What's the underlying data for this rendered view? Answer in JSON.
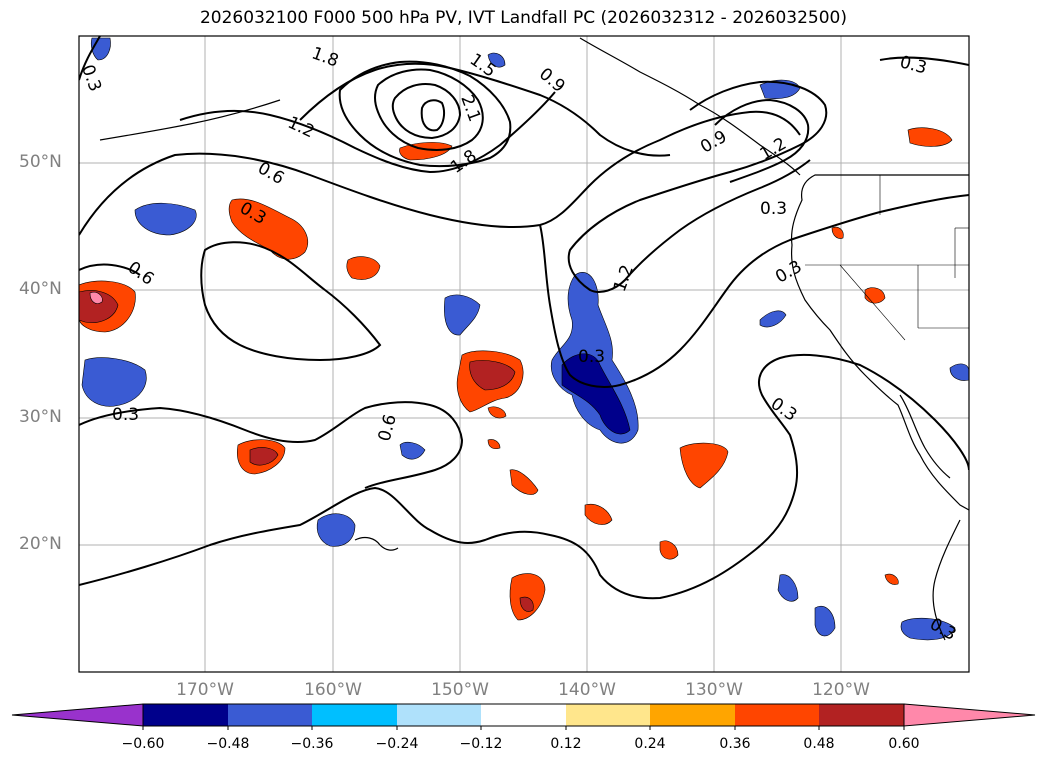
{
  "title": "2026032100 F000 500 hPa PV, IVT Landfall PC (2026032312 - 2026032500)",
  "map": {
    "lat_labels": [
      "50°N",
      "40°N",
      "30°N",
      "20°N"
    ],
    "lon_labels": [
      "170°W",
      "160°W",
      "150°W",
      "140°W",
      "130°W",
      "120°W"
    ],
    "contour_labels": [
      "0.3",
      "0.3",
      "0.3",
      "0.3",
      "0.3",
      "0.3",
      "0.6",
      "0.6",
      "0.6",
      "0.9",
      "0.9",
      "1.2",
      "1.2",
      "1.2",
      "1.5",
      "1.8",
      "1.8",
      "2.1",
      "0.3",
      "0.3",
      "0.3"
    ],
    "colors": {
      "land_line": "#000000",
      "grid": "#b0b0b0",
      "pv_contour": "#000000"
    }
  },
  "colorbar": {
    "ticks": [
      "−0.60",
      "−0.48",
      "−0.36",
      "−0.24",
      "−0.12",
      "0.12",
      "0.24",
      "0.36",
      "0.48",
      "0.60"
    ],
    "colors": [
      "#9932cc",
      "#00008b",
      "#3a5bd3",
      "#00bfff",
      "#afe1fb",
      "#ffffff",
      "#ffe68c",
      "#ffa500",
      "#ff4500",
      "#b22222",
      "#ff88aa"
    ]
  }
}
